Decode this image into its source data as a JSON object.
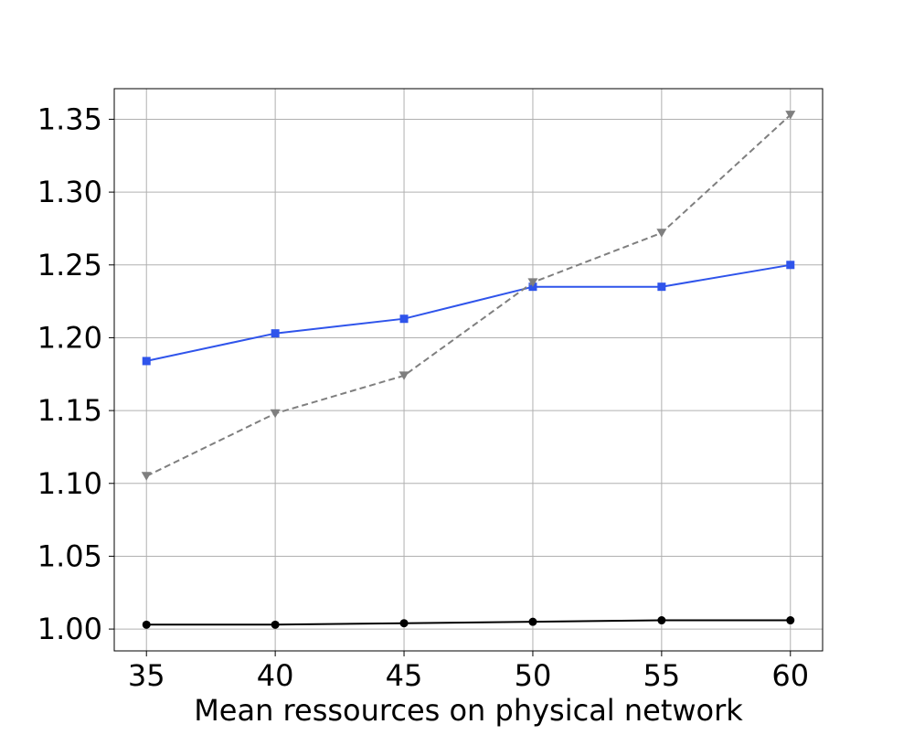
{
  "chart_data": {
    "type": "line",
    "title": "",
    "xlabel": "Mean ressources on physical network",
    "ylabel": "",
    "x": [
      35,
      40,
      45,
      50,
      55,
      60
    ],
    "x_ticks": [
      "35",
      "40",
      "45",
      "50",
      "55",
      "60"
    ],
    "y_ticks": [
      "1.00",
      "1.05",
      "1.10",
      "1.15",
      "1.20",
      "1.25",
      "1.30",
      "1.35"
    ],
    "xlim": [
      33.75,
      61.25
    ],
    "ylim": [
      0.985,
      1.371
    ],
    "grid": true,
    "legend": "none",
    "series": [
      {
        "values": [
          1.184,
          1.203,
          1.213,
          1.235,
          1.235,
          1.25
        ],
        "color": "#2f54eb",
        "line_style": "solid",
        "marker": "square"
      },
      {
        "values": [
          1.105,
          1.148,
          1.174,
          1.238,
          1.272,
          1.353
        ],
        "color": "#7f7f7f",
        "line_style": "dashed",
        "marker": "triangle-down"
      },
      {
        "values": [
          1.003,
          1.003,
          1.004,
          1.005,
          1.006,
          1.006
        ],
        "color": "#000000",
        "line_style": "solid",
        "marker": "circle"
      }
    ]
  }
}
